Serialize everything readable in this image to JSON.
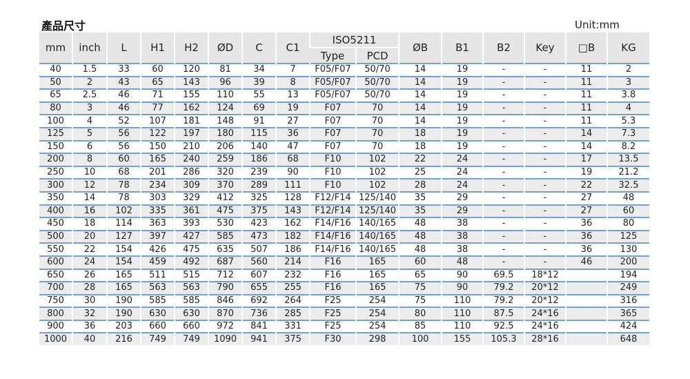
{
  "title": "產品尺寸",
  "unit": "Unit:mm",
  "colors": {
    "header_bg": "#e6e6e6",
    "row_alt_bg": "#ececec",
    "row_line": "#6fa3d6"
  },
  "headers": {
    "mm": "mm",
    "inch": "inch",
    "L": "L",
    "H1": "H1",
    "H2": "H2",
    "D": "ØD",
    "C": "C",
    "C1": "C1",
    "iso": "ISO5211",
    "type": "Type",
    "pcd": "PCD",
    "B": "ØB",
    "B1": "B1",
    "B2": "B2",
    "key": "Key",
    "sqB": "□B",
    "kg": "KG"
  },
  "rows": [
    [
      "40",
      "1.5",
      "33",
      "60",
      "120",
      "81",
      "34",
      "7",
      "F05/F07",
      "50/70",
      "14",
      "19",
      "-",
      "-",
      "11",
      "2"
    ],
    [
      "50",
      "2",
      "43",
      "65",
      "143",
      "96",
      "39",
      "8",
      "F05/F07",
      "50/70",
      "14",
      "19",
      "-",
      "-",
      "11",
      "3"
    ],
    [
      "65",
      "2.5",
      "46",
      "71",
      "155",
      "110",
      "55",
      "13",
      "F05/F07",
      "50/70",
      "14",
      "19",
      "-",
      "-",
      "11",
      "3.8"
    ],
    [
      "80",
      "3",
      "46",
      "77",
      "162",
      "124",
      "69",
      "19",
      "F07",
      "70",
      "14",
      "19",
      "-",
      "-",
      "11",
      "4"
    ],
    [
      "100",
      "4",
      "52",
      "107",
      "181",
      "148",
      "91",
      "27",
      "F07",
      "70",
      "14",
      "19",
      "-",
      "-",
      "11",
      "5.3"
    ],
    [
      "125",
      "5",
      "56",
      "122",
      "197",
      "180",
      "115",
      "36",
      "F07",
      "70",
      "18",
      "19",
      "-",
      "-",
      "14",
      "7.3"
    ],
    [
      "150",
      "6",
      "56",
      "150",
      "210",
      "206",
      "140",
      "47",
      "F07",
      "70",
      "18",
      "19",
      "-",
      "-",
      "14",
      "8.2"
    ],
    [
      "200",
      "8",
      "60",
      "165",
      "240",
      "259",
      "186",
      "68",
      "F10",
      "102",
      "22",
      "24",
      "-",
      "-",
      "17",
      "13.5"
    ],
    [
      "250",
      "10",
      "68",
      "201",
      "286",
      "320",
      "239",
      "90",
      "F10",
      "102",
      "25",
      "24",
      "-",
      "-",
      "19",
      "21.2"
    ],
    [
      "300",
      "12",
      "78",
      "234",
      "309",
      "370",
      "289",
      "111",
      "F10",
      "102",
      "28",
      "24",
      "-",
      "-",
      "22",
      "32.5"
    ],
    [
      "350",
      "14",
      "78",
      "303",
      "329",
      "412",
      "325",
      "128",
      "F12/F14",
      "125/140",
      "35",
      "29",
      "-",
      "-",
      "27",
      "48"
    ],
    [
      "400",
      "16",
      "102",
      "335",
      "361",
      "475",
      "375",
      "143",
      "F12/F14",
      "125/140",
      "35",
      "29",
      "-",
      "-",
      "27",
      "60"
    ],
    [
      "450",
      "18",
      "114",
      "363",
      "393",
      "530",
      "423",
      "162",
      "F14/F16",
      "140/165",
      "48",
      "38",
      "-",
      "-",
      "36",
      "80"
    ],
    [
      "500",
      "20",
      "127",
      "397",
      "427",
      "585",
      "473",
      "182",
      "F14/F16",
      "140/165",
      "48",
      "38",
      "-",
      "-",
      "36",
      "125"
    ],
    [
      "550",
      "22",
      "154",
      "426",
      "475",
      "635",
      "507",
      "186",
      "F14/F16",
      "140/165",
      "48",
      "38",
      "-",
      "-",
      "36",
      "130"
    ],
    [
      "600",
      "24",
      "154",
      "459",
      "492",
      "687",
      "560",
      "214",
      "F16",
      "165",
      "60",
      "48",
      "-",
      "-",
      "46",
      "200"
    ],
    [
      "650",
      "26",
      "165",
      "511",
      "515",
      "712",
      "607",
      "232",
      "F16",
      "165",
      "65",
      "90",
      "69.5",
      "18*12",
      "",
      "194"
    ],
    [
      "700",
      "28",
      "165",
      "563",
      "563",
      "790",
      "655",
      "255",
      "F16",
      "165",
      "75",
      "90",
      "79.2",
      "20*12",
      "",
      "249"
    ],
    [
      "750",
      "30",
      "190",
      "585",
      "585",
      "846",
      "692",
      "264",
      "F25",
      "254",
      "75",
      "110",
      "79.2",
      "20*12",
      "",
      "316"
    ],
    [
      "800",
      "32",
      "190",
      "630",
      "630",
      "870",
      "736",
      "285",
      "F25",
      "254",
      "80",
      "110",
      "87.5",
      "24*16",
      "",
      "365"
    ],
    [
      "900",
      "36",
      "203",
      "660",
      "660",
      "972",
      "841",
      "331",
      "F25",
      "254",
      "85",
      "110",
      "92.5",
      "24*16",
      "",
      "424"
    ],
    [
      "1000",
      "40",
      "216",
      "749",
      "749",
      "1090",
      "941",
      "375",
      "F30",
      "298",
      "100",
      "155",
      "105.3",
      "28*16",
      "",
      "648"
    ]
  ]
}
